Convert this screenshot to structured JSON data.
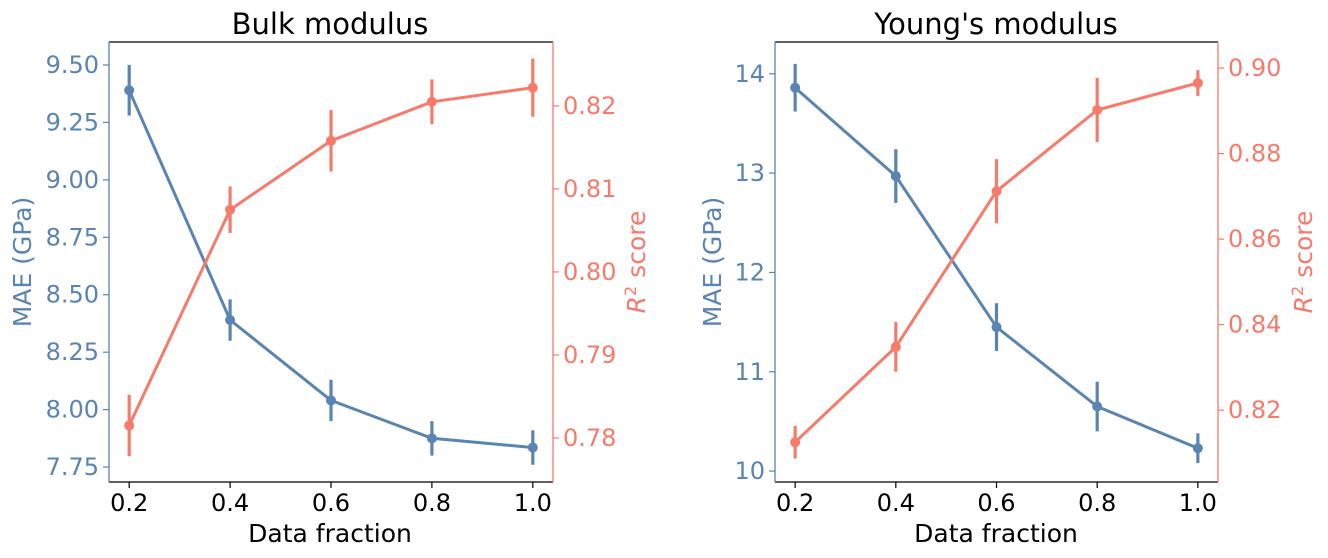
{
  "colors": {
    "mae": "#5a84b1",
    "r2": "#f87a6b",
    "axis": "#000000"
  },
  "chart_data": [
    {
      "type": "line",
      "title": "Bulk modulus",
      "xlabel": "Data fraction",
      "ylabel_left": "MAE (GPa)",
      "ylabel_right": "score",
      "ylabel_right_symbol": "R",
      "ylabel_right_superscript": "2",
      "x": [
        0.2,
        0.4,
        0.6,
        0.8,
        1.0
      ],
      "x_tick_labels": [
        "0.2",
        "0.4",
        "0.6",
        "0.8",
        "1.0"
      ],
      "xlim": [
        0.16,
        1.04
      ],
      "left_axis": {
        "ylim": [
          7.685,
          9.6
        ],
        "ticks": [
          7.75,
          8.0,
          8.25,
          8.5,
          8.75,
          9.0,
          9.25,
          9.5
        ],
        "tick_labels": [
          "7.75",
          "8.00",
          "8.25",
          "8.50",
          "8.75",
          "9.00",
          "9.25",
          "9.50"
        ]
      },
      "right_axis": {
        "ylim": [
          0.7747,
          0.8277
        ],
        "ticks": [
          0.78,
          0.79,
          0.8,
          0.81,
          0.82
        ],
        "tick_labels": [
          "0.78",
          "0.79",
          "0.80",
          "0.81",
          "0.82"
        ]
      },
      "series": [
        {
          "name": "MAE (GPa)",
          "axis": "left",
          "values": [
            9.39,
            8.39,
            8.04,
            7.875,
            7.835
          ],
          "errors": [
            0.11,
            0.09,
            0.09,
            0.075,
            0.075
          ]
        },
        {
          "name": "R2 score",
          "axis": "right",
          "values": [
            0.7815,
            0.8075,
            0.8158,
            0.8205,
            0.8222
          ],
          "errors": [
            0.0037,
            0.0028,
            0.0037,
            0.0027,
            0.0035
          ]
        }
      ]
    },
    {
      "type": "line",
      "title": "Young's modulus",
      "xlabel": "Data fraction",
      "ylabel_left": "MAE (GPa)",
      "ylabel_right": "score",
      "ylabel_right_symbol": "R",
      "ylabel_right_superscript": "2",
      "x": [
        0.2,
        0.4,
        0.6,
        0.8,
        1.0
      ],
      "x_tick_labels": [
        "0.2",
        "0.4",
        "0.6",
        "0.8",
        "1.0"
      ],
      "xlim": [
        0.16,
        1.04
      ],
      "left_axis": {
        "ylim": [
          9.89,
          14.32
        ],
        "ticks": [
          10,
          11,
          12,
          13,
          14
        ],
        "tick_labels": [
          "10",
          "11",
          "12",
          "13",
          "14"
        ]
      },
      "right_axis": {
        "ylim": [
          0.8032,
          0.9061
        ],
        "ticks": [
          0.82,
          0.84,
          0.86,
          0.88,
          0.9
        ],
        "tick_labels": [
          "0.82",
          "0.84",
          "0.86",
          "0.88",
          "0.90"
        ]
      },
      "series": [
        {
          "name": "MAE (GPa)",
          "axis": "left",
          "values": [
            13.86,
            12.97,
            11.45,
            10.65,
            10.23
          ],
          "errors": [
            0.24,
            0.27,
            0.24,
            0.25,
            0.15
          ]
        },
        {
          "name": "R2 score",
          "axis": "right",
          "values": [
            0.8125,
            0.8348,
            0.8712,
            0.8902,
            0.8965
          ],
          "errors": [
            0.0038,
            0.0058,
            0.0075,
            0.0075,
            0.003
          ]
        }
      ]
    }
  ]
}
